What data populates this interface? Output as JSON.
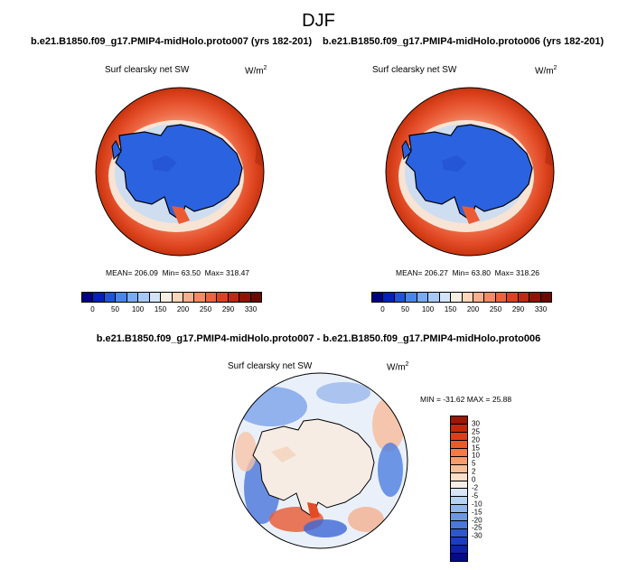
{
  "season": "DJF",
  "panels": [
    {
      "title": "b.e21.B1850.f09_g17.PMIP4-midHolo.proto007 (yrs 182-201)",
      "variable": "Surf clearsky net SW",
      "units": "W/m",
      "units_exp": "2",
      "mean": "MEAN= 206.09",
      "min": "Min=  63.50",
      "max": "Max= 318.47"
    },
    {
      "title": "b.e21.B1850.f09_g17.PMIP4-midHolo.proto006 (yrs 182-201)",
      "variable": "Surf clearsky net SW",
      "units": "W/m",
      "units_exp": "2",
      "mean": "MEAN= 206.27",
      "min": "Min=  63.80",
      "max": "Max= 318.26"
    }
  ],
  "abs_colorbar": {
    "colors": [
      "#000080",
      "#0022b8",
      "#1e55d6",
      "#4a85e8",
      "#7aaaf0",
      "#a8c8f4",
      "#d4e4f8",
      "#f7efe4",
      "#fbd6bb",
      "#f7b08e",
      "#f28a64",
      "#ea6440",
      "#d94322",
      "#bb2a12",
      "#8e1405",
      "#680a00"
    ],
    "ticks": [
      "0",
      "50",
      "100",
      "150",
      "200",
      "250",
      "290",
      "330"
    ]
  },
  "diff": {
    "title": "b.e21.B1850.f09_g17.PMIP4-midHolo.proto007 - b.e21.B1850.f09_g17.PMIP4-midHolo.proto006",
    "variable": "Surf clearsky net SW",
    "units": "W/m",
    "units_exp": "2",
    "minmax": "MIN = -31.62  MAX =  25.88"
  },
  "diff_colorbar": {
    "colors": [
      "#9a1605",
      "#c1280c",
      "#dc3f18",
      "#ec5a2c",
      "#f47a46",
      "#f89c6c",
      "#fbbf98",
      "#fde0c8",
      "#f7efe4",
      "#d8e6f7",
      "#b8d2f2",
      "#90b6ec",
      "#6c98e2",
      "#4a78d8",
      "#2d58cc",
      "#1a3ebd",
      "#0c24a4",
      "#020b88"
    ],
    "ticks": [
      "30",
      "25",
      "20",
      "15",
      "10",
      "5",
      "2",
      "0",
      "-2",
      "-5",
      "-10",
      "-15",
      "-20",
      "-25",
      "-30"
    ]
  }
}
